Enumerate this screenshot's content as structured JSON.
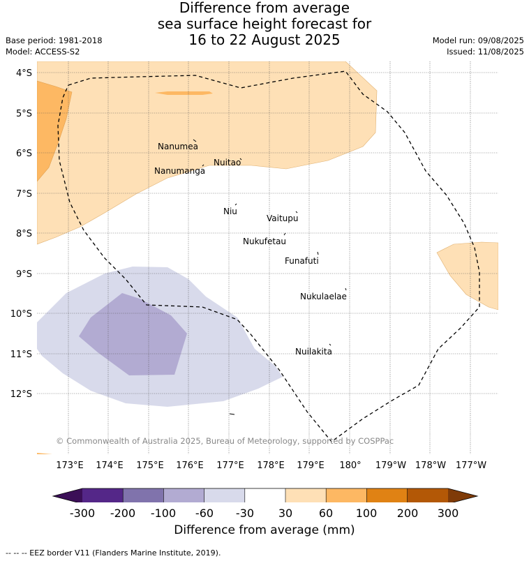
{
  "title": {
    "line1": "Difference from average",
    "line2": "sea surface height forecast for",
    "line3": "16 to 22 August 2025"
  },
  "meta_left": {
    "base_period": "Base period: 1981-2018",
    "model": "Model: ACCESS-S2"
  },
  "meta_right": {
    "model_run": "Model run: 09/08/2025",
    "issued": "Issued: 11/08/2025"
  },
  "map": {
    "lat_labels": [
      "4°S",
      "5°S",
      "6°S",
      "7°S",
      "8°S",
      "9°S",
      "10°S",
      "11°S",
      "12°S"
    ],
    "lon_labels": [
      "173°E",
      "174°E",
      "175°E",
      "176°E",
      "177°E",
      "178°E",
      "179°E",
      "180°",
      "179°W",
      "178°W",
      "177°W"
    ],
    "places": [
      {
        "name": "Nanumea"
      },
      {
        "name": "Nuitao"
      },
      {
        "name": "Nanumanga"
      },
      {
        "name": "Niu"
      },
      {
        "name": "Vaitupu"
      },
      {
        "name": "Nukufetau"
      },
      {
        "name": "Funafuti"
      },
      {
        "name": "Nukulaelae"
      },
      {
        "name": "Nuilakita"
      }
    ],
    "copyright": "© Commonwealth of Australia 2025, Bureau of Meteorology, supported by COSPPac"
  },
  "colorbar": {
    "labels": [
      "-300",
      "-200",
      "-100",
      "-60",
      "-30",
      "30",
      "60",
      "100",
      "200",
      "300"
    ],
    "colors": [
      "#3b0f57",
      "#542788",
      "#8073ac",
      "#b2abd2",
      "#d8daeb",
      "#ffffff",
      "#fee0b6",
      "#fdb863",
      "#e08214",
      "#b35806",
      "#7f3b08"
    ],
    "title": "Difference from average (mm)"
  },
  "footer": "-- -- -- EEZ border V11 (Flanders Marine Institute, 2019)."
}
